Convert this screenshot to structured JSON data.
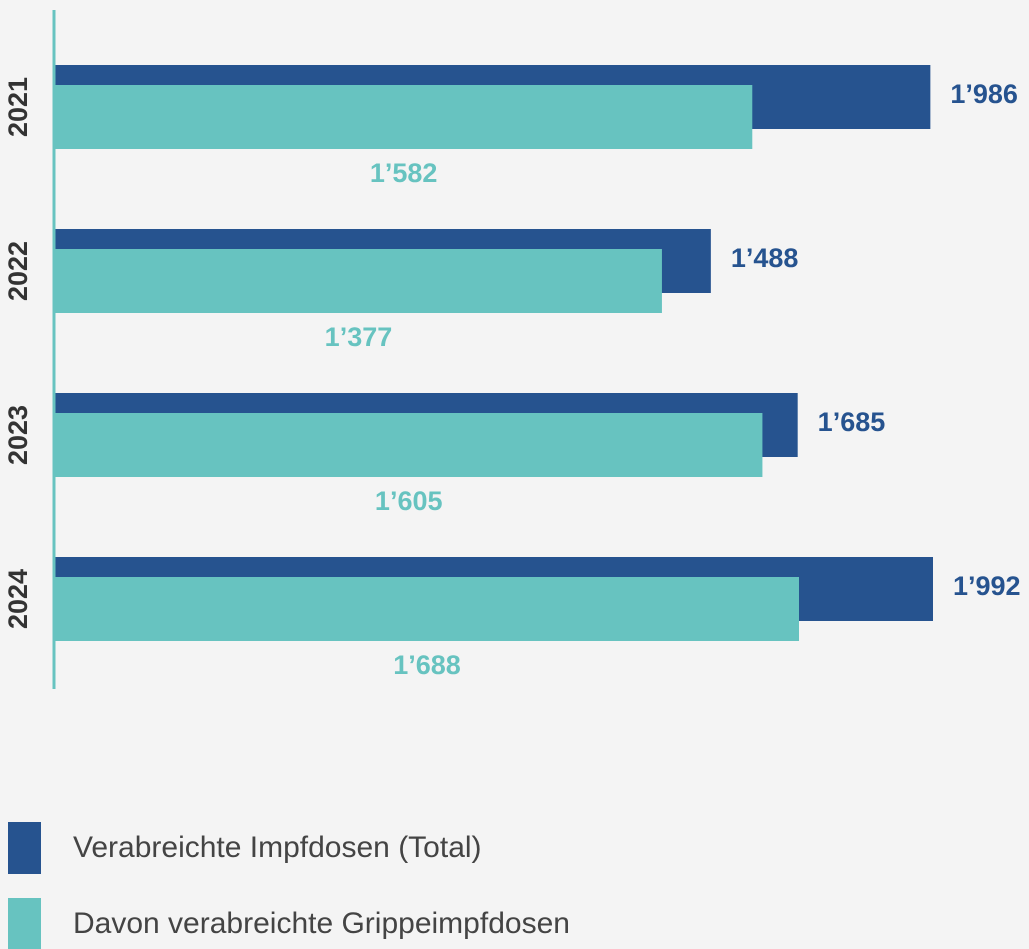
{
  "chart_data": {
    "type": "barh",
    "categories": [
      "2021",
      "2022",
      "2023",
      "2024"
    ],
    "series": [
      {
        "name": "Verabreichte Impfdosen (Total)",
        "color": "#26538f",
        "values": [
          1986,
          1488,
          1685,
          1992
        ],
        "value_labels": [
          "1’986",
          "1’488",
          "1’685",
          "1’992"
        ]
      },
      {
        "name": "Davon verabreichte Grippeimpfdosen",
        "color": "#67c3c0",
        "values": [
          1582,
          1377,
          1605,
          1688
        ],
        "value_labels": [
          "1’582",
          "1’377",
          "1’605",
          "1’688"
        ]
      }
    ]
  }
}
